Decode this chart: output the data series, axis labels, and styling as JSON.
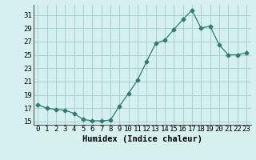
{
  "x": [
    0,
    1,
    2,
    3,
    4,
    5,
    6,
    7,
    8,
    9,
    10,
    11,
    12,
    13,
    14,
    15,
    16,
    17,
    18,
    19,
    20,
    21,
    22,
    23
  ],
  "y": [
    17.5,
    17.0,
    16.8,
    16.7,
    16.2,
    15.3,
    15.1,
    15.1,
    15.2,
    17.3,
    19.2,
    21.2,
    24.0,
    26.7,
    27.2,
    28.8,
    30.3,
    31.7,
    29.0,
    29.3,
    26.5,
    25.0,
    25.0,
    25.3
  ],
  "line_color": "#2e7d6e",
  "marker": "D",
  "marker_size": 2.5,
  "bg_color": "#d6f0f0",
  "grid_color": "#aad4d4",
  "xlabel": "Humidex (Indice chaleur)",
  "ylabel": "",
  "title": "",
  "xlim": [
    -0.5,
    23.5
  ],
  "ylim": [
    14.5,
    32.5
  ],
  "yticks": [
    15,
    17,
    19,
    21,
    23,
    25,
    27,
    29,
    31
  ],
  "xticks": [
    0,
    1,
    2,
    3,
    4,
    5,
    6,
    7,
    8,
    9,
    10,
    11,
    12,
    13,
    14,
    15,
    16,
    17,
    18,
    19,
    20,
    21,
    22,
    23
  ],
  "xlabel_fontsize": 7.5,
  "tick_fontsize": 6.5,
  "label_font": "monospace"
}
